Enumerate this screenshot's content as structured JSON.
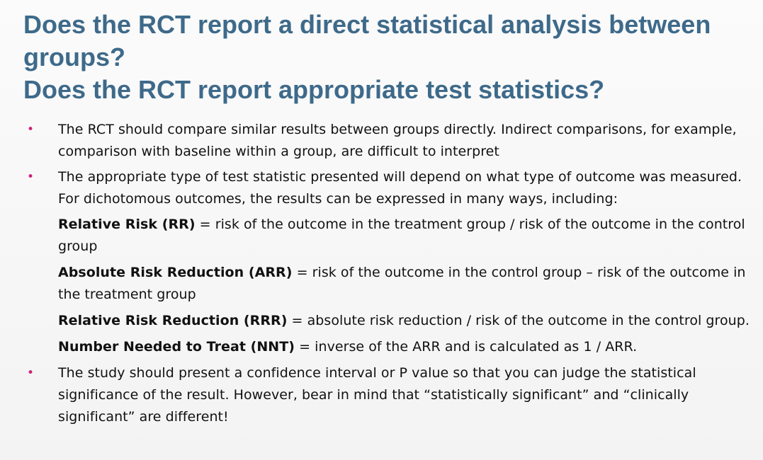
{
  "slide": {
    "title_lines": [
      "Does the RCT report a direct statistical analysis between",
      "groups?",
      "Does the RCT report appropriate test statistics?"
    ],
    "bullet_marker": "•",
    "bullets": [
      {
        "text": "The RCT should compare similar results between groups directly. Indirect comparisons, for example, comparison with baseline within a group, are difficult to interpret"
      },
      {
        "text": "The appropriate type of test statistic presented will depend on what type of outcome was measured. For dichotomous outcomes, the results can be expressed in many ways, including:"
      }
    ],
    "definitions": [
      {
        "term": "Relative Risk (RR)",
        "rest": " = risk of the outcome in the treatment group / risk of the outcome in the control group"
      },
      {
        "term": "Absolute Risk Reduction (ARR)",
        "rest": " = risk of the outcome in the control group – risk of the outcome in the treatment group"
      },
      {
        "term": "Relative Risk Reduction (RRR)",
        "rest": " = absolute risk reduction / risk of the outcome in the control group."
      },
      {
        "term": "Number Needed to Treat (NNT)",
        "rest": " = inverse of the ARR and is calculated as 1 / ARR."
      }
    ],
    "final_bullet": {
      "text": "The study should present a confidence interval or P value so that you can judge the statistical significance of the result. However, bear in mind that “statistically significant” and “clinically significant” are different!"
    },
    "colors": {
      "title": "#3e6a8a",
      "bullet": "#d11f76",
      "body": "#111111"
    }
  }
}
